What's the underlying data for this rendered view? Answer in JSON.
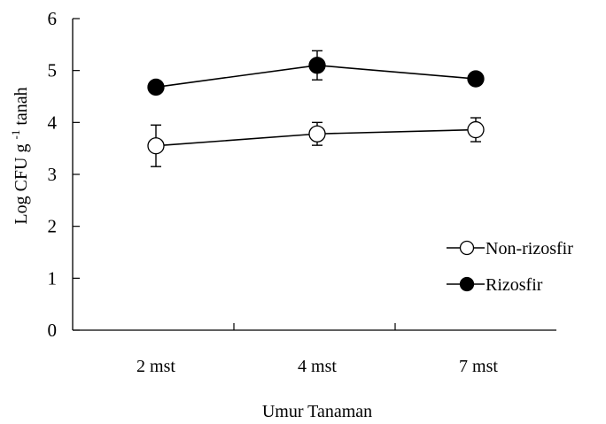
{
  "chart_data": {
    "type": "line",
    "categories": [
      "2 mst",
      "4 mst",
      "7 mst"
    ],
    "xlabel": "Umur Tanaman",
    "ylabel": {
      "base": "Log CFU g",
      "superscript": "-1",
      "suffix": " tanah"
    },
    "ylim": [
      0,
      6
    ],
    "yticks": [
      0,
      1,
      2,
      3,
      4,
      5,
      6
    ],
    "grid": false,
    "legend_position": "right",
    "series": [
      {
        "name": "Non-rizosfir",
        "marker": "open-circle",
        "color": "#000000",
        "values": [
          3.55,
          3.78,
          3.86
        ],
        "errors": [
          0.4,
          0.22,
          0.23
        ]
      },
      {
        "name": "Rizosfir",
        "marker": "filled-circle",
        "color": "#000000",
        "values": [
          4.68,
          5.1,
          4.84
        ],
        "errors": [
          0.08,
          0.28,
          0.08
        ]
      }
    ]
  }
}
